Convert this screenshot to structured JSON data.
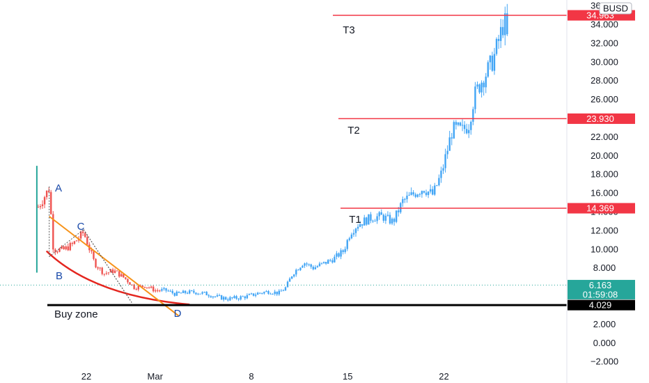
{
  "chart_data": {
    "type": "candlestick",
    "currency_badge": "BUSD",
    "ylim": [
      -2.8,
      36.6
    ],
    "y_ticks": [
      -2,
      0,
      2,
      4,
      6,
      8,
      10,
      12,
      14,
      16,
      18,
      20,
      22,
      24,
      26,
      28,
      30,
      32,
      34,
      36
    ],
    "y_tick_labels": [
      "−2.000",
      "0.000",
      "2.000",
      "4.000",
      "6.000",
      "8.000",
      "10.000",
      "12.000",
      "14.000",
      "16.000",
      "18.000",
      "20.000",
      "22.000",
      "24.000",
      "26.000",
      "28.000",
      "30.000",
      "32.000",
      "34.000",
      "36.000"
    ],
    "xlim": [
      17,
      45
    ],
    "x_ticks": [
      {
        "label": "22",
        "day": 22
      },
      {
        "label": "Mar",
        "day": 27
      },
      {
        "label": "8",
        "day": 34
      },
      {
        "label": "15",
        "day": 41
      },
      {
        "label": "22",
        "day": 48
      }
    ],
    "last_price": {
      "value": 6.163,
      "label": "6.163",
      "countdown": "01:59:08",
      "color": "#26a69a"
    },
    "buy_zone": {
      "value": 4.029,
      "label": "4.029",
      "text": "Buy zone",
      "color": "#000000"
    },
    "targets": [
      {
        "name": "T1",
        "value": 14.369,
        "label": "14.369"
      },
      {
        "name": "T2",
        "value": 23.93,
        "label": "23.930"
      },
      {
        "name": "T3",
        "value": 34.963,
        "label": "34.963"
      }
    ],
    "target_color": "#f23645",
    "points": [
      {
        "name": "A",
        "x": 19.3,
        "y": 16.7
      },
      {
        "name": "B",
        "x": 19.3,
        "y": 9.2
      },
      {
        "name": "C",
        "x": 21.8,
        "y": 12.1
      },
      {
        "name": "D",
        "x": 25.3,
        "y": 4.3
      }
    ],
    "trendline": {
      "x1": 19.3,
      "y1": 13.5,
      "x2": 28.7,
      "y2": 2.9,
      "color": "#f7931a"
    },
    "dotted_line": {
      "x1": 21.8,
      "y1": 12.1,
      "x2": 25.3,
      "y2": 4.3,
      "color": "#555555"
    },
    "red_curve": {
      "from": [
        19.1,
        9.8
      ],
      "via": [
        22.5,
        5.0
      ],
      "to": [
        29.5,
        4.1
      ],
      "color": "#e4261f"
    },
    "green_bar": {
      "x": 18.4,
      "low": 7.5,
      "high": 18.9,
      "color": "#26a69a"
    },
    "anchors": [
      {
        "x": 18.5,
        "y": 14.5
      },
      {
        "x": 19.3,
        "y": 16.5
      },
      {
        "x": 19.6,
        "y": 10.0
      },
      {
        "x": 20.3,
        "y": 9.9
      },
      {
        "x": 21.0,
        "y": 10.5
      },
      {
        "x": 21.8,
        "y": 11.8
      },
      {
        "x": 22.6,
        "y": 8.5
      },
      {
        "x": 23.3,
        "y": 7.4
      },
      {
        "x": 24.0,
        "y": 7.7
      },
      {
        "x": 24.8,
        "y": 6.9
      },
      {
        "x": 25.5,
        "y": 5.9
      },
      {
        "x": 26.3,
        "y": 6.1
      },
      {
        "x": 27.0,
        "y": 5.6
      },
      {
        "x": 27.8,
        "y": 5.6
      },
      {
        "x": 28.5,
        "y": 5.2
      },
      {
        "x": 29.3,
        "y": 5.4
      },
      {
        "x": 30.0,
        "y": 5.4
      },
      {
        "x": 30.8,
        "y": 5.2
      },
      {
        "x": 31.5,
        "y": 4.9
      },
      {
        "x": 32.3,
        "y": 4.7
      },
      {
        "x": 33.0,
        "y": 4.8
      },
      {
        "x": 33.8,
        "y": 5.0
      },
      {
        "x": 34.5,
        "y": 5.3
      },
      {
        "x": 35.3,
        "y": 5.5
      },
      {
        "x": 36.0,
        "y": 5.3
      },
      {
        "x": 36.5,
        "y": 5.9
      },
      {
        "x": 37.0,
        "y": 7.4
      },
      {
        "x": 37.8,
        "y": 8.6
      },
      {
        "x": 38.5,
        "y": 8.0
      },
      {
        "x": 39.3,
        "y": 8.5
      },
      {
        "x": 40.0,
        "y": 9.0
      },
      {
        "x": 40.7,
        "y": 9.8
      },
      {
        "x": 41.2,
        "y": 11.8
      },
      {
        "x": 41.7,
        "y": 12.6
      },
      {
        "x": 42.2,
        "y": 13.0
      },
      {
        "x": 42.8,
        "y": 13.4
      },
      {
        "x": 43.5,
        "y": 13.5
      },
      {
        "x": 44.3,
        "y": 12.9
      },
      {
        "x": 45.0,
        "y": 15.1
      },
      {
        "x": 45.8,
        "y": 15.9
      },
      {
        "x": 46.5,
        "y": 16.5
      },
      {
        "x": 47.2,
        "y": 15.8
      },
      {
        "x": 47.8,
        "y": 18.0
      },
      {
        "x": 48.2,
        "y": 20.3
      },
      {
        "x": 48.6,
        "y": 22.7
      },
      {
        "x": 49.0,
        "y": 22.8
      },
      {
        "x": 49.3,
        "y": 22.6
      },
      {
        "x": 49.8,
        "y": 23.3
      },
      {
        "x": 50.2,
        "y": 26.3
      },
      {
        "x": 50.7,
        "y": 27.9
      },
      {
        "x": 51.2,
        "y": 29.1
      },
      {
        "x": 51.6,
        "y": 30.3
      },
      {
        "x": 52.0,
        "y": 32.3
      },
      {
        "x": 52.4,
        "y": 34.5
      },
      {
        "x": 52.7,
        "y": 31.5
      }
    ],
    "candle_colors": {
      "down": "#ef5350",
      "up": "#42a5f5"
    },
    "grid": false,
    "legend": "none"
  }
}
